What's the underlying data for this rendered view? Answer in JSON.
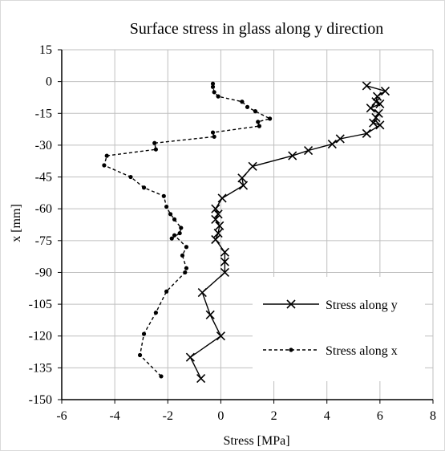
{
  "chart_data": {
    "type": "line",
    "title": "Surface stress in glass along y direction",
    "xlabel": "Stress [MPa]",
    "ylabel": "x [mm]",
    "xlim": [
      -6,
      8
    ],
    "ylim": [
      -150,
      15
    ],
    "xticks": [
      -6,
      -4,
      -2,
      0,
      2,
      4,
      6,
      8
    ],
    "yticks": [
      15,
      0,
      -15,
      -30,
      -45,
      -60,
      -75,
      -90,
      -105,
      -120,
      -135,
      -150
    ],
    "grid": true,
    "legend_position": "lower-right inside plot",
    "series": [
      {
        "name": "Stress along y",
        "line_style": "solid",
        "marker": "x",
        "color": "#000000",
        "points": [
          [
            5.5,
            -2
          ],
          [
            6.2,
            -4.5
          ],
          [
            5.9,
            -7
          ],
          [
            5.85,
            -9.5
          ],
          [
            6.0,
            -10.5
          ],
          [
            5.65,
            -12.5
          ],
          [
            5.95,
            -15
          ],
          [
            5.85,
            -17
          ],
          [
            5.75,
            -19.5
          ],
          [
            6.0,
            -20.5
          ],
          [
            5.5,
            -24.5
          ],
          [
            4.5,
            -27
          ],
          [
            4.2,
            -29.5
          ],
          [
            3.3,
            -32.5
          ],
          [
            2.7,
            -35
          ],
          [
            1.2,
            -40
          ],
          [
            0.8,
            -45.5
          ],
          [
            0.85,
            -49
          ],
          [
            0.05,
            -55
          ],
          [
            -0.2,
            -60
          ],
          [
            -0.1,
            -62.5
          ],
          [
            -0.2,
            -65
          ],
          [
            -0.05,
            -68
          ],
          [
            -0.1,
            -71.5
          ],
          [
            -0.2,
            -74.5
          ],
          [
            0.15,
            -80.5
          ],
          [
            0.15,
            -85
          ],
          [
            0.15,
            -90
          ],
          [
            -0.7,
            -99.5
          ],
          [
            -0.4,
            -110
          ],
          [
            0.0,
            -120
          ],
          [
            -1.15,
            -130
          ],
          [
            -0.75,
            -140
          ]
        ]
      },
      {
        "name": "Stress along x",
        "line_style": "dashed",
        "marker": "dot",
        "color": "#000000",
        "points": [
          [
            -0.3,
            -1
          ],
          [
            -0.3,
            -2.5
          ],
          [
            -0.25,
            -5
          ],
          [
            -0.1,
            -7
          ],
          [
            0.8,
            -9.5
          ],
          [
            1.0,
            -12
          ],
          [
            1.3,
            -14
          ],
          [
            1.85,
            -17.5
          ],
          [
            1.4,
            -19
          ],
          [
            1.45,
            -21
          ],
          [
            -0.3,
            -24
          ],
          [
            -0.25,
            -26
          ],
          [
            -2.5,
            -29
          ],
          [
            -2.45,
            -32
          ],
          [
            -4.3,
            -35
          ],
          [
            -4.4,
            -39.5
          ],
          [
            -3.4,
            -45
          ],
          [
            -2.9,
            -50
          ],
          [
            -2.15,
            -54
          ],
          [
            -2.05,
            -59
          ],
          [
            -1.9,
            -62.5
          ],
          [
            -1.75,
            -65
          ],
          [
            -1.5,
            -69
          ],
          [
            -1.55,
            -71.5
          ],
          [
            -1.85,
            -74
          ],
          [
            -1.75,
            -72.5
          ],
          [
            -1.3,
            -78
          ],
          [
            -1.45,
            -82
          ],
          [
            -1.3,
            -88
          ],
          [
            -1.35,
            -90
          ],
          [
            -2.05,
            -99
          ],
          [
            -2.45,
            -109
          ],
          [
            -2.9,
            -119
          ],
          [
            -3.05,
            -129
          ],
          [
            -2.25,
            -139
          ]
        ]
      }
    ],
    "legend": [
      {
        "label": "Stress along y",
        "marker": "x",
        "line_style": "solid"
      },
      {
        "label": "Stress along x",
        "marker": "dot",
        "line_style": "dashed"
      }
    ]
  }
}
